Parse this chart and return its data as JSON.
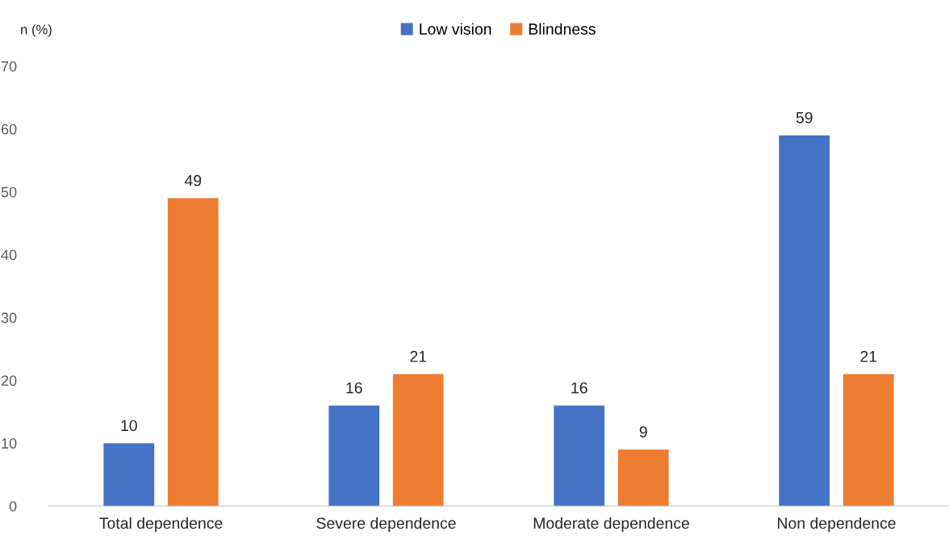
{
  "chart_data": {
    "type": "bar",
    "ylabel": "n (%)",
    "categories": [
      "Total dependence",
      "Severe dependence",
      "Moderate dependence",
      "Non dependence"
    ],
    "series": [
      {
        "name": "Low vision",
        "color": "#4472c4",
        "values": [
          10,
          16,
          16,
          59
        ]
      },
      {
        "name": "Blindness",
        "color": "#ed7d31",
        "values": [
          49,
          21,
          9,
          21
        ]
      }
    ],
    "ylim": [
      0,
      70
    ],
    "yticks": [
      0,
      10,
      20,
      30,
      40,
      50,
      60,
      70
    ],
    "grid": false,
    "legend": "top",
    "data_labels": true
  }
}
